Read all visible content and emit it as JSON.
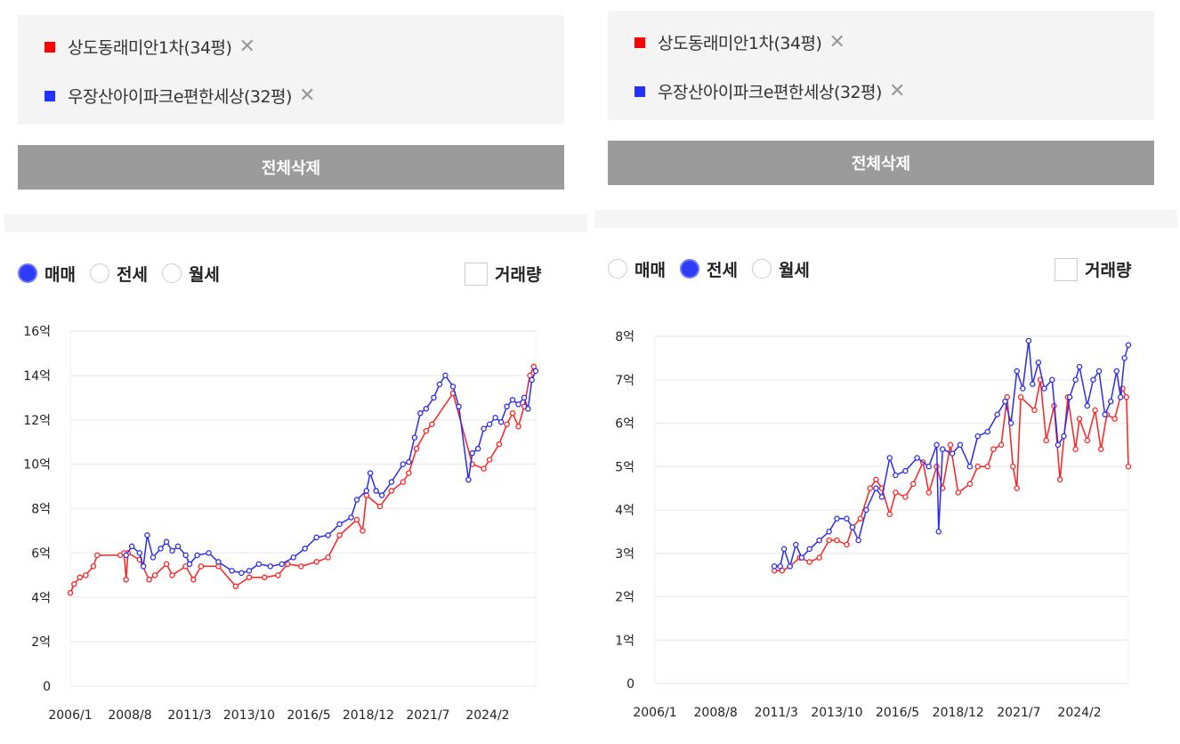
{
  "colors": {
    "series_red": "#ff2020",
    "series_blue": "#2b2bf0",
    "button_bg": "#9b9b9b",
    "radio_selected": "#2d3cf5"
  },
  "panels": [
    {
      "legend": [
        {
          "label": "상도동래미안1차(34평)",
          "color": "#ff0000",
          "remove_icon": "close-icon"
        },
        {
          "label": "우장산아이파크e편한세상(32평)",
          "color": "#2233ff",
          "remove_icon": "close-icon"
        }
      ],
      "remove_symbol": "✕",
      "clear_all_label": "전체삭제",
      "radio_options": [
        "매매",
        "전세",
        "월세"
      ],
      "selected_option": "매매",
      "volume_label": "거래량",
      "volume_checked": false
    },
    {
      "legend": [
        {
          "label": "상도동래미안1차(34평)",
          "color": "#ff0000",
          "remove_icon": "close-icon"
        },
        {
          "label": "우장산아이파크e편한세상(32평)",
          "color": "#2233ff",
          "remove_icon": "close-icon"
        }
      ],
      "remove_symbol": "✕",
      "clear_all_label": "전체삭제",
      "radio_options": [
        "매매",
        "전세",
        "월세"
      ],
      "selected_option": "전세",
      "volume_label": "거래량",
      "volume_checked": false
    }
  ],
  "chart_data": [
    {
      "type": "line",
      "xlim": [
        "2006-01",
        "2026-03"
      ],
      "ylim": [
        0,
        16
      ],
      "y_unit": "억",
      "y_ticks": [
        "0",
        "2억",
        "4억",
        "6억",
        "8억",
        "10억",
        "12억",
        "14억",
        "16억"
      ],
      "x_ticks": [
        "2006/1",
        "2008/8",
        "2011/3",
        "2013/10",
        "2016/5",
        "2018/12",
        "2021/7",
        "2024/2"
      ],
      "grid": true,
      "series": [
        {
          "name": "상도동래미안1차(34평)",
          "color": "#ff2020",
          "points": [
            [
              "2006-01",
              4.2
            ],
            [
              "2006-03",
              4.6
            ],
            [
              "2006-06",
              4.9
            ],
            [
              "2006-09",
              5.0
            ],
            [
              "2007-01",
              5.4
            ],
            [
              "2007-03",
              5.9
            ],
            [
              "2008-03",
              5.9
            ],
            [
              "2008-05",
              6.0
            ],
            [
              "2008-06",
              4.8
            ],
            [
              "2008-07",
              6.0
            ],
            [
              "2009-01",
              5.7
            ],
            [
              "2009-06",
              4.8
            ],
            [
              "2009-09",
              5.0
            ],
            [
              "2010-03",
              5.5
            ],
            [
              "2010-06",
              5.0
            ],
            [
              "2011-01",
              5.4
            ],
            [
              "2011-05",
              4.8
            ],
            [
              "2011-09",
              5.4
            ],
            [
              "2012-06",
              5.4
            ],
            [
              "2013-03",
              4.5
            ],
            [
              "2013-10",
              4.9
            ],
            [
              "2014-06",
              4.9
            ],
            [
              "2015-01",
              5.0
            ],
            [
              "2015-06",
              5.5
            ],
            [
              "2016-01",
              5.4
            ],
            [
              "2016-09",
              5.6
            ],
            [
              "2017-03",
              5.8
            ],
            [
              "2017-09",
              6.8
            ],
            [
              "2018-06",
              7.5
            ],
            [
              "2018-09",
              7.0
            ],
            [
              "2018-11",
              8.6
            ],
            [
              "2019-06",
              8.1
            ],
            [
              "2019-12",
              8.8
            ],
            [
              "2020-06",
              9.2
            ],
            [
              "2020-09",
              9.6
            ],
            [
              "2021-01",
              10.7
            ],
            [
              "2021-06",
              11.5
            ],
            [
              "2021-09",
              11.8
            ],
            [
              "2022-08",
              13.2
            ],
            [
              "2023-06",
              10.0
            ],
            [
              "2023-12",
              9.8
            ],
            [
              "2024-03",
              10.2
            ],
            [
              "2024-08",
              10.9
            ],
            [
              "2024-12",
              11.8
            ],
            [
              "2025-03",
              12.3
            ],
            [
              "2025-06",
              11.7
            ],
            [
              "2025-09",
              12.6
            ],
            [
              "2025-12",
              14.0
            ],
            [
              "2026-02",
              14.4
            ]
          ]
        },
        {
          "name": "우장산아이파크e편한세상(32평)",
          "color": "#2b2bf0",
          "points": [
            [
              "2008-06",
              5.9
            ],
            [
              "2008-09",
              6.3
            ],
            [
              "2009-01",
              6.0
            ],
            [
              "2009-03",
              5.4
            ],
            [
              "2009-05",
              6.8
            ],
            [
              "2009-08",
              5.8
            ],
            [
              "2009-12",
              6.2
            ],
            [
              "2010-03",
              6.5
            ],
            [
              "2010-06",
              6.1
            ],
            [
              "2010-09",
              6.3
            ],
            [
              "2011-01",
              5.9
            ],
            [
              "2011-03",
              5.5
            ],
            [
              "2011-07",
              5.9
            ],
            [
              "2012-01",
              6.0
            ],
            [
              "2012-06",
              5.6
            ],
            [
              "2013-01",
              5.2
            ],
            [
              "2013-06",
              5.1
            ],
            [
              "2013-10",
              5.2
            ],
            [
              "2014-03",
              5.5
            ],
            [
              "2014-09",
              5.4
            ],
            [
              "2015-03",
              5.5
            ],
            [
              "2015-09",
              5.8
            ],
            [
              "2016-03",
              6.2
            ],
            [
              "2016-09",
              6.7
            ],
            [
              "2017-03",
              6.8
            ],
            [
              "2017-09",
              7.3
            ],
            [
              "2018-03",
              7.6
            ],
            [
              "2018-06",
              8.4
            ],
            [
              "2018-11",
              8.8
            ],
            [
              "2019-01",
              9.6
            ],
            [
              "2019-04",
              8.8
            ],
            [
              "2019-07",
              8.6
            ],
            [
              "2019-12",
              9.2
            ],
            [
              "2020-06",
              10.0
            ],
            [
              "2020-09",
              10.1
            ],
            [
              "2020-12",
              11.2
            ],
            [
              "2021-03",
              12.3
            ],
            [
              "2021-06",
              12.5
            ],
            [
              "2021-10",
              13.0
            ],
            [
              "2022-01",
              13.6
            ],
            [
              "2022-04",
              14.0
            ],
            [
              "2022-08",
              13.5
            ],
            [
              "2022-11",
              12.6
            ],
            [
              "2023-04",
              9.3
            ],
            [
              "2023-06",
              10.5
            ],
            [
              "2023-09",
              10.7
            ],
            [
              "2023-12",
              11.6
            ],
            [
              "2024-03",
              11.8
            ],
            [
              "2024-06",
              12.1
            ],
            [
              "2024-09",
              11.9
            ],
            [
              "2024-12",
              12.6
            ],
            [
              "2025-03",
              12.9
            ],
            [
              "2025-06",
              12.7
            ],
            [
              "2025-09",
              13.0
            ],
            [
              "2025-11",
              12.5
            ],
            [
              "2026-01",
              13.8
            ],
            [
              "2026-03",
              14.2
            ]
          ]
        }
      ]
    },
    {
      "type": "line",
      "xlim": [
        "2006-01",
        "2026-03"
      ],
      "ylim": [
        0,
        8
      ],
      "y_unit": "억",
      "y_ticks": [
        "0",
        "1억",
        "2억",
        "3억",
        "4억",
        "5억",
        "6억",
        "7억",
        "8억"
      ],
      "x_ticks": [
        "2006/1",
        "2008/8",
        "2011/3",
        "2013/10",
        "2016/5",
        "2018/12",
        "2021/7",
        "2024/2"
      ],
      "grid": true,
      "series": [
        {
          "name": "상도동래미안1차(34평)",
          "color": "#ff2020",
          "points": [
            [
              "2011-02",
              2.6
            ],
            [
              "2011-06",
              2.6
            ],
            [
              "2011-10",
              2.7
            ],
            [
              "2012-03",
              2.9
            ],
            [
              "2012-08",
              2.8
            ],
            [
              "2013-01",
              2.9
            ],
            [
              "2013-06",
              3.3
            ],
            [
              "2013-10",
              3.3
            ],
            [
              "2014-03",
              3.2
            ],
            [
              "2014-06",
              3.6
            ],
            [
              "2014-10",
              3.8
            ],
            [
              "2015-03",
              4.5
            ],
            [
              "2015-06",
              4.7
            ],
            [
              "2015-09",
              4.5
            ],
            [
              "2016-01",
              3.9
            ],
            [
              "2016-04",
              4.4
            ],
            [
              "2016-09",
              4.3
            ],
            [
              "2017-01",
              4.6
            ],
            [
              "2017-06",
              5.1
            ],
            [
              "2017-09",
              4.4
            ],
            [
              "2018-01",
              5.0
            ],
            [
              "2018-04",
              4.5
            ],
            [
              "2018-08",
              5.5
            ],
            [
              "2018-12",
              4.4
            ],
            [
              "2019-06",
              4.6
            ],
            [
              "2019-10",
              5.0
            ],
            [
              "2020-03",
              5.0
            ],
            [
              "2020-06",
              5.4
            ],
            [
              "2020-10",
              5.5
            ],
            [
              "2021-01",
              6.6
            ],
            [
              "2021-04",
              5.0
            ],
            [
              "2021-06",
              4.5
            ],
            [
              "2021-08",
              6.6
            ],
            [
              "2022-03",
              6.3
            ],
            [
              "2022-06",
              7.0
            ],
            [
              "2022-09",
              5.6
            ],
            [
              "2023-01",
              6.4
            ],
            [
              "2023-04",
              4.7
            ],
            [
              "2023-08",
              6.6
            ],
            [
              "2023-12",
              5.4
            ],
            [
              "2024-02",
              6.1
            ],
            [
              "2024-06",
              5.6
            ],
            [
              "2024-10",
              6.3
            ],
            [
              "2025-01",
              5.4
            ],
            [
              "2025-04",
              6.2
            ],
            [
              "2025-08",
              6.1
            ],
            [
              "2025-12",
              6.8
            ],
            [
              "2026-02",
              6.6
            ],
            [
              "2026-03",
              5.0
            ]
          ]
        },
        {
          "name": "우장산아이파크e편한세상(32평)",
          "color": "#2b2bf0",
          "points": [
            [
              "2011-02",
              2.7
            ],
            [
              "2011-05",
              2.7
            ],
            [
              "2011-07",
              3.1
            ],
            [
              "2011-10",
              2.7
            ],
            [
              "2012-01",
              3.2
            ],
            [
              "2012-04",
              2.9
            ],
            [
              "2012-08",
              3.1
            ],
            [
              "2013-01",
              3.3
            ],
            [
              "2013-06",
              3.5
            ],
            [
              "2013-10",
              3.8
            ],
            [
              "2014-03",
              3.8
            ],
            [
              "2014-06",
              3.6
            ],
            [
              "2014-09",
              3.3
            ],
            [
              "2015-01",
              4.0
            ],
            [
              "2015-06",
              4.5
            ],
            [
              "2015-09",
              4.3
            ],
            [
              "2016-01",
              5.2
            ],
            [
              "2016-04",
              4.8
            ],
            [
              "2016-09",
              4.9
            ],
            [
              "2017-03",
              5.2
            ],
            [
              "2017-09",
              5.0
            ],
            [
              "2018-01",
              5.5
            ],
            [
              "2018-02",
              3.5
            ],
            [
              "2018-04",
              5.4
            ],
            [
              "2018-09",
              5.3
            ],
            [
              "2019-01",
              5.5
            ],
            [
              "2019-06",
              5.0
            ],
            [
              "2019-10",
              5.7
            ],
            [
              "2020-03",
              5.8
            ],
            [
              "2020-08",
              6.2
            ],
            [
              "2020-12",
              6.5
            ],
            [
              "2021-03",
              6.0
            ],
            [
              "2021-06",
              7.2
            ],
            [
              "2021-09",
              6.8
            ],
            [
              "2021-12",
              7.9
            ],
            [
              "2022-02",
              6.9
            ],
            [
              "2022-05",
              7.4
            ],
            [
              "2022-08",
              6.8
            ],
            [
              "2022-12",
              7.0
            ],
            [
              "2023-03",
              5.5
            ],
            [
              "2023-06",
              5.7
            ],
            [
              "2023-09",
              6.6
            ],
            [
              "2023-12",
              7.0
            ],
            [
              "2024-02",
              7.3
            ],
            [
              "2024-06",
              6.4
            ],
            [
              "2024-09",
              7.0
            ],
            [
              "2024-12",
              7.2
            ],
            [
              "2025-03",
              6.2
            ],
            [
              "2025-06",
              6.5
            ],
            [
              "2025-09",
              7.2
            ],
            [
              "2025-11",
              6.6
            ],
            [
              "2026-01",
              7.5
            ],
            [
              "2026-03",
              7.8
            ]
          ]
        }
      ]
    }
  ]
}
